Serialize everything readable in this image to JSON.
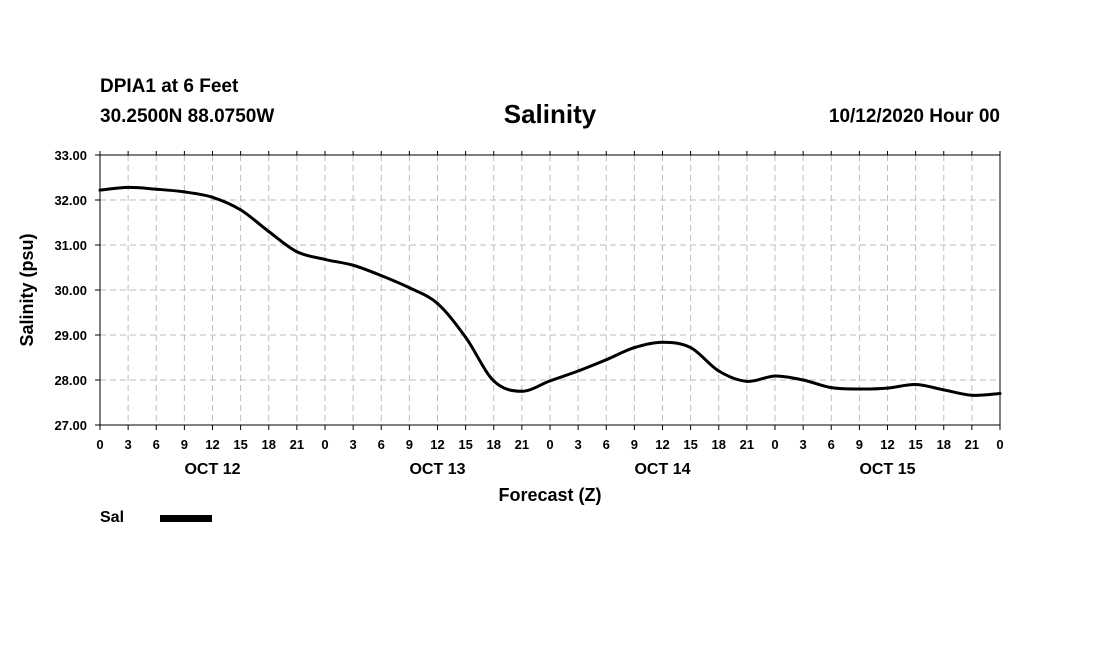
{
  "header": {
    "station": "DPIA1 at 6 Feet",
    "coords": "30.2500N 88.0750W",
    "title": "Salinity",
    "runtime": "10/12/2020 Hour 00"
  },
  "chart_data": {
    "type": "line",
    "title": "Salinity",
    "xlabel": "Forecast (Z)",
    "ylabel": "Salinity (psu)",
    "x_unit": "hours since 10/12/2020 00Z",
    "xlim": [
      0,
      96
    ],
    "ylim": [
      27,
      33
    ],
    "y_ticks": [
      "27.00",
      "28.00",
      "29.00",
      "30.00",
      "31.00",
      "32.00",
      "33.00"
    ],
    "x_ticks": [
      "0",
      "3",
      "6",
      "9",
      "12",
      "15",
      "18",
      "21",
      "0",
      "3",
      "6",
      "9",
      "12",
      "15",
      "18",
      "21",
      "0",
      "3",
      "6",
      "9",
      "12",
      "15",
      "18",
      "21",
      "0",
      "3",
      "6",
      "9",
      "12",
      "15",
      "18",
      "21",
      "0"
    ],
    "day_labels": [
      "OCT 12",
      "OCT 13",
      "OCT 14",
      "OCT 15"
    ],
    "grid": true,
    "legend_position": "bottom-left",
    "series": [
      {
        "name": "Sal",
        "color": "#000000",
        "x": [
          0,
          3,
          6,
          9,
          12,
          15,
          18,
          21,
          24,
          27,
          30,
          33,
          36,
          39,
          42,
          45,
          48,
          51,
          54,
          57,
          60,
          63,
          66,
          69,
          72,
          75,
          78,
          81,
          84,
          87,
          90,
          93,
          96
        ],
        "values": [
          32.22,
          32.28,
          32.24,
          32.18,
          32.06,
          31.78,
          31.3,
          30.85,
          30.68,
          30.55,
          30.32,
          30.05,
          29.7,
          28.95,
          27.98,
          27.75,
          27.98,
          28.2,
          28.45,
          28.72,
          28.84,
          28.72,
          28.2,
          27.97,
          28.09,
          28.0,
          27.83,
          27.8,
          27.82,
          27.9,
          27.78,
          27.66,
          27.7
        ]
      }
    ]
  }
}
